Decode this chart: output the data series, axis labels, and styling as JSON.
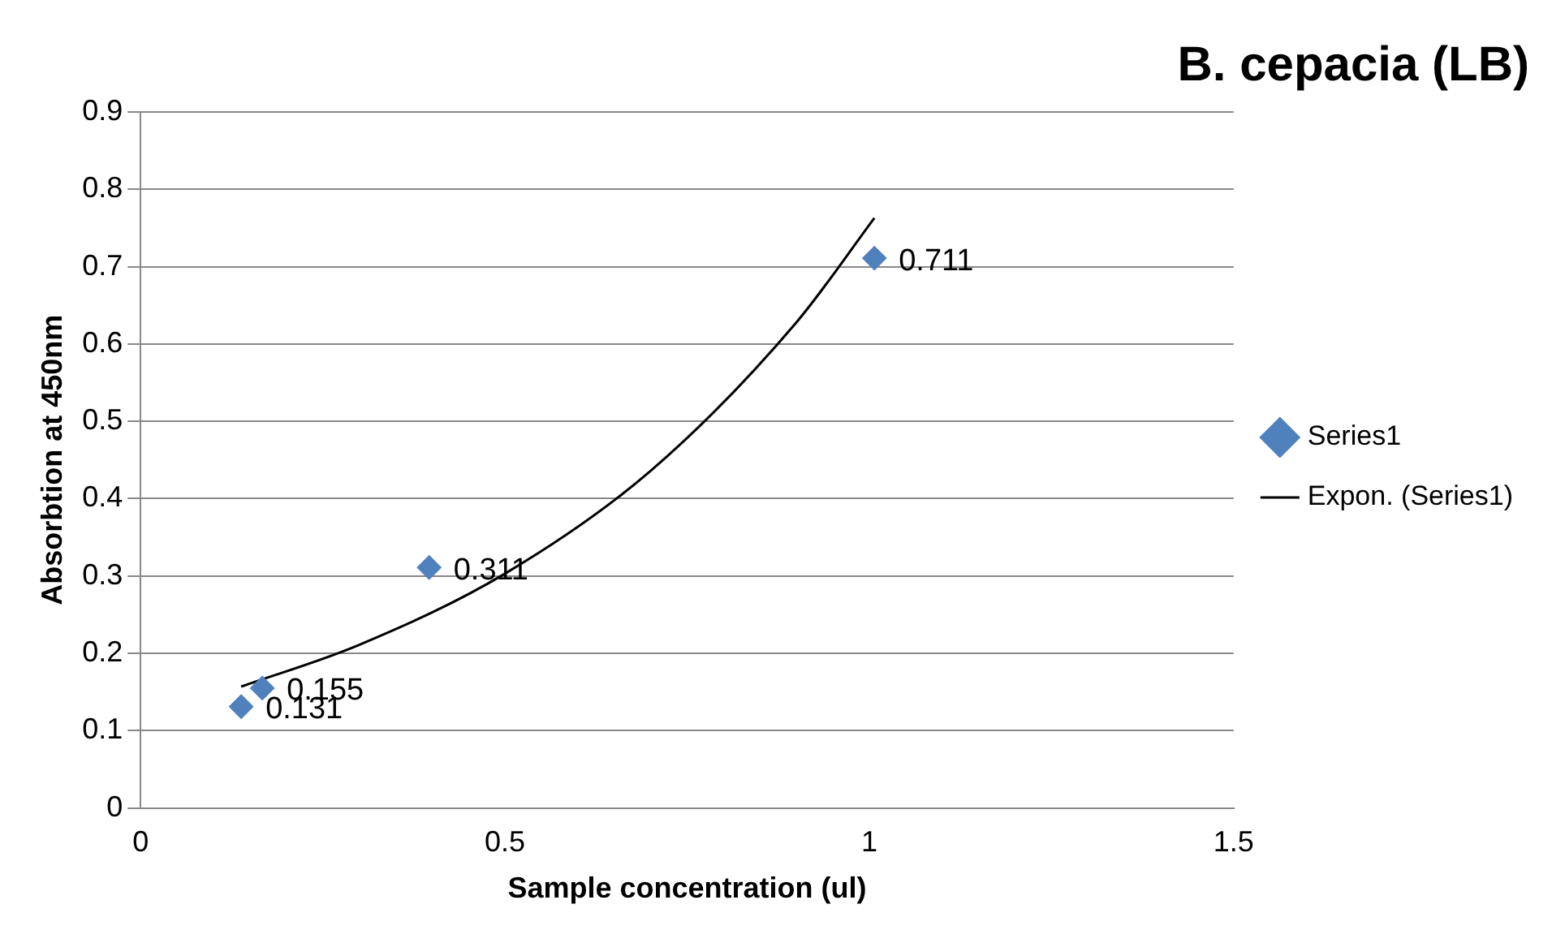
{
  "chart_data": {
    "type": "scatter",
    "title": "B. cepacia (LB)",
    "xlabel": "Sample concentration (ul)",
    "ylabel": "Absorbtion at 450nm",
    "series": [
      {
        "name": "Series1",
        "color": "#4f81bd",
        "x": [
          0.138,
          0.167,
          0.396,
          1.007
        ],
        "values": [
          0.131,
          0.155,
          0.311,
          0.711
        ],
        "value_labels": [
          "0.131",
          "0.155",
          "0.311",
          "0.711"
        ],
        "marker": "diamond"
      },
      {
        "name": "Expon. (Series1)",
        "type": "line",
        "color": "#000000",
        "x": [
          0.138,
          0.3,
          0.5,
          0.7,
          0.9,
          1.007
        ],
        "values": [
          0.157,
          0.211,
          0.303,
          0.436,
          0.628,
          0.763
        ],
        "line_style": "solid"
      }
    ],
    "xlim": [
      0,
      1.5
    ],
    "xticks": [
      0,
      0.5,
      1,
      1.5
    ],
    "ylim": [
      0,
      0.9
    ],
    "yticks": [
      0,
      0.1,
      0.2,
      0.3,
      0.4,
      0.5,
      0.6,
      0.7,
      0.8,
      0.9
    ],
    "grid": "y",
    "legend": "right"
  }
}
